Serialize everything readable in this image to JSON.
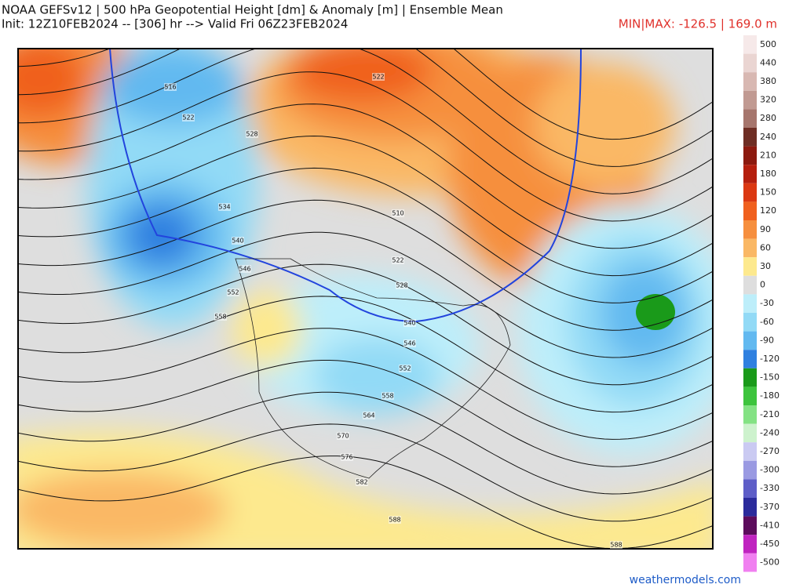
{
  "header": {
    "title": "NOAA GEFSv12 | 500 hPa Geopotential Height [dm] & Anomaly [m] | Ensemble Mean",
    "subtitle": "Init: 12Z10FEB2024 -- [306] hr --> Valid Fri 06Z23FEB2024",
    "minmax": "MIN|MAX: -126.5 | 169.0 m"
  },
  "colorbar": [
    {
      "label": 500,
      "color": "#f6e9e9"
    },
    {
      "label": 440,
      "color": "#ead5d2"
    },
    {
      "label": 380,
      "color": "#d8b8b2"
    },
    {
      "label": 320,
      "color": "#c19a92"
    },
    {
      "label": 280,
      "color": "#a6766d"
    },
    {
      "label": 240,
      "color": "#6e2e24"
    },
    {
      "label": 210,
      "color": "#8c1a0f"
    },
    {
      "label": 180,
      "color": "#b51f0e"
    },
    {
      "label": 150,
      "color": "#db3812"
    },
    {
      "label": 120,
      "color": "#f0601e"
    },
    {
      "label": 90,
      "color": "#f68f3e"
    },
    {
      "label": 60,
      "color": "#fab865"
    },
    {
      "label": 30,
      "color": "#fde98e"
    },
    {
      "label": 0,
      "color": "#dedede"
    },
    {
      "label": -30,
      "color": "#bdeefa"
    },
    {
      "label": -60,
      "color": "#92daf6"
    },
    {
      "label": -90,
      "color": "#62b9f0"
    },
    {
      "label": -120,
      "color": "#2f80e0"
    },
    {
      "label": -150,
      "color": "#1a9a1a"
    },
    {
      "label": -180,
      "color": "#3dc43d"
    },
    {
      "label": -210,
      "color": "#84e284"
    },
    {
      "label": -240,
      "color": "#cdf2cd"
    },
    {
      "label": -270,
      "color": "#cacaf2"
    },
    {
      "label": -300,
      "color": "#9a9ae2"
    },
    {
      "label": -330,
      "color": "#5e5ec8"
    },
    {
      "label": -370,
      "color": "#2b2b9c"
    },
    {
      "label": -410,
      "color": "#5c0c5c"
    },
    {
      "label": -450,
      "color": "#c024c0"
    },
    {
      "label": -500,
      "color": "#f080f0"
    }
  ],
  "contour_labels": [
    516,
    522,
    528,
    534,
    540,
    546,
    552,
    558,
    510,
    522,
    528,
    540,
    546,
    552,
    558,
    564,
    570,
    576,
    582,
    588,
    588,
    522
  ],
  "footer": {
    "credit": "weathermodels.com"
  }
}
